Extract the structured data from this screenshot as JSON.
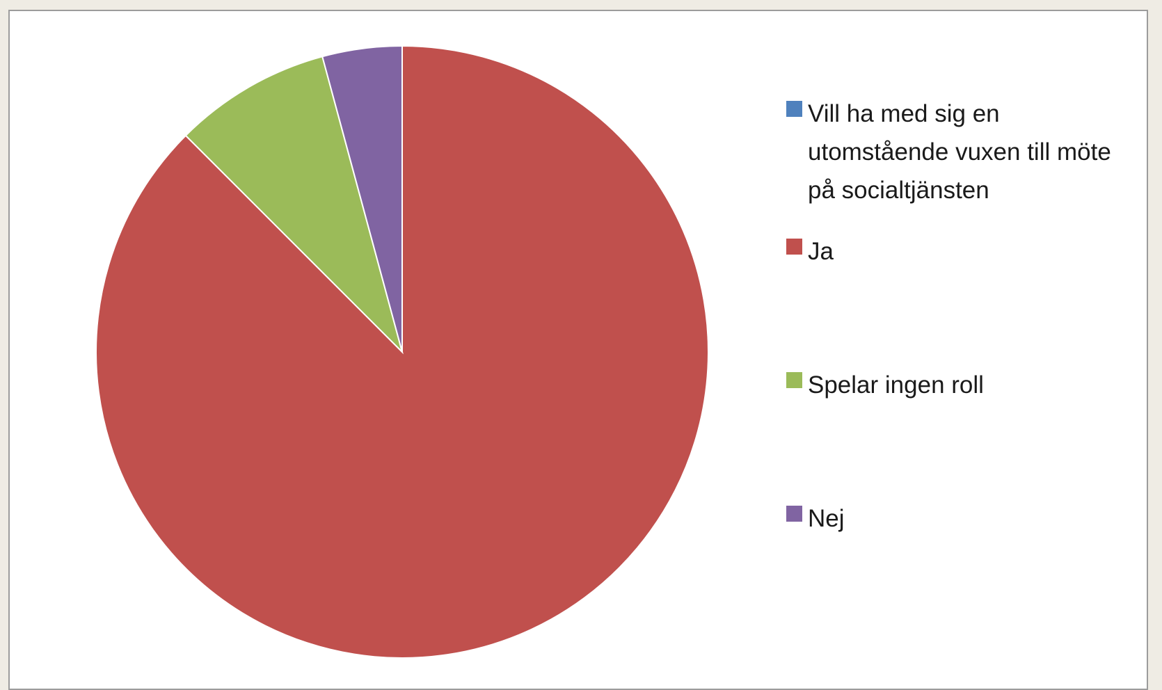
{
  "chart_data": {
    "type": "pie",
    "title": "",
    "legend_position": "right",
    "start_angle": "12 o'clock, clockwise",
    "slices": [
      {
        "label": "Vill ha med sig en utomstående vuxen till möte på socialtjänsten",
        "value": 0,
        "color": "#4f81bd"
      },
      {
        "label": "Ja",
        "value": 87.5,
        "color": "#c0504d"
      },
      {
        "label": "Spelar ingen roll",
        "value": 8.3,
        "color": "#9bbb59"
      },
      {
        "label": "Nej",
        "value": 4.2,
        "color": "#8064a2"
      }
    ]
  }
}
